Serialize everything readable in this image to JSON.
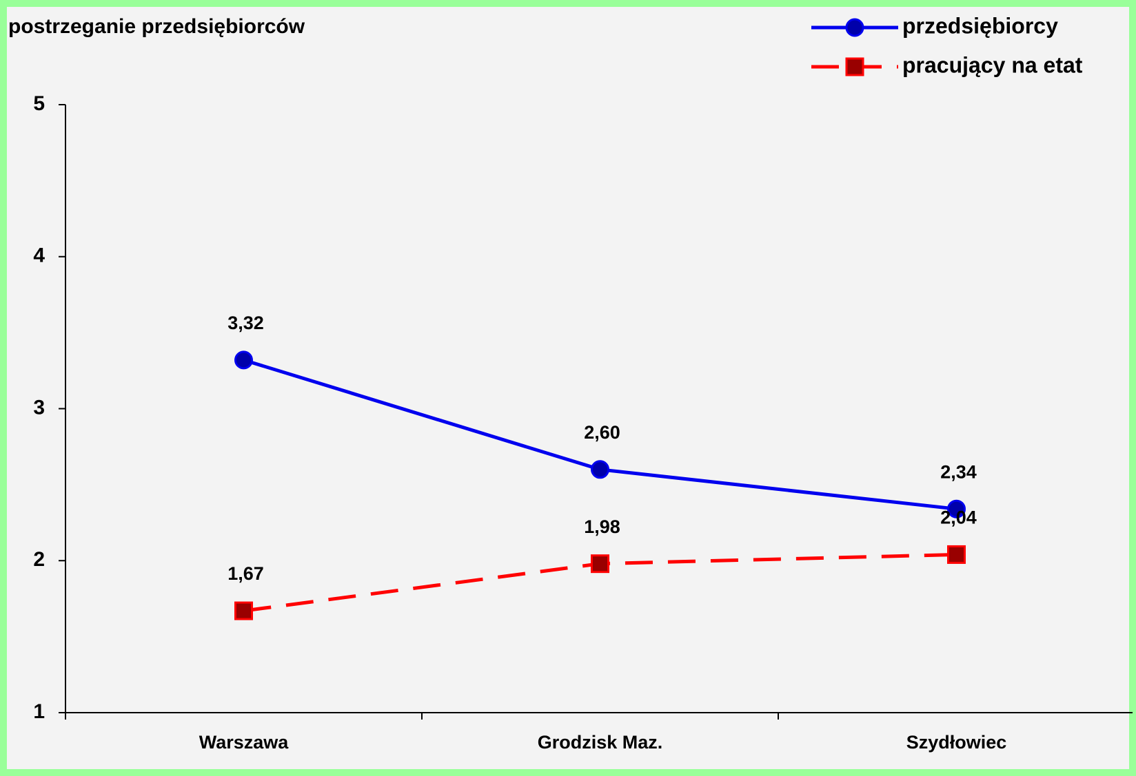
{
  "chart_data": {
    "type": "line",
    "title": "postrzeganie przedsiębiorców",
    "categories": [
      "Warszawa",
      "Grodzisk Maz.",
      "Szydłowiec"
    ],
    "series": [
      {
        "name": "przedsiębiorcy",
        "color": "#0000ee",
        "marker": "circle",
        "line_style": "solid",
        "values": [
          3.32,
          2.6,
          2.34
        ],
        "value_labels": [
          "3,32",
          "2,60",
          "2,34"
        ]
      },
      {
        "name": "pracujący na etat",
        "color": "#ff0000",
        "marker": "square",
        "line_style": "dashed",
        "values": [
          1.67,
          1.98,
          2.04
        ],
        "value_labels": [
          "1,67",
          "1,98",
          "2,04"
        ]
      }
    ],
    "ylim": [
      1,
      5
    ],
    "yticks": [
      1,
      2,
      3,
      4,
      5
    ],
    "legend": "top-right"
  }
}
